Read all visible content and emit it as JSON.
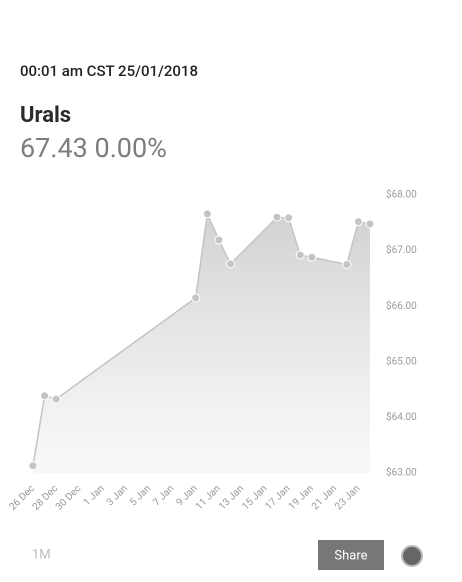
{
  "timestamp": "00:01 am CST 25/01/2018",
  "name": "Urals",
  "quote": "67.43 0.00%",
  "range_button": "1M",
  "share_button": "Share",
  "chart_data": {
    "type": "area",
    "x": [
      "26 Dec",
      "27 Dec",
      "28 Dec",
      "9 Jan",
      "10 Jan",
      "11 Jan",
      "12 Jan",
      "16 Jan",
      "17 Jan",
      "18 Jan",
      "19 Jan",
      "22 Jan",
      "23 Jan",
      "24 Jan"
    ],
    "series": [
      {
        "color": "#c4c4c4",
        "values": [
          63.13,
          64.39,
          64.33,
          66.15,
          67.66,
          67.19,
          66.76,
          67.6,
          67.59,
          66.92,
          66.88,
          66.75,
          67.52,
          67.48
        ]
      }
    ],
    "xlim": [
      "26 Dec",
      "24 Jan"
    ],
    "xticks": [
      "26 Dec",
      "28 Dec",
      "30 Dec",
      "1 Jan",
      "3 Jan",
      "5 Jan",
      "7 Jan",
      "9 Jan",
      "11 Jan",
      "13 Jan",
      "15 Jan",
      "17 Jan",
      "19 Jan",
      "21 Jan",
      "23 Jan"
    ],
    "ylim": [
      63,
      68
    ],
    "yticks": [
      {
        "value": 63,
        "label": "$63.00"
      },
      {
        "value": 64,
        "label": "$64.00"
      },
      {
        "value": 65,
        "label": "$65.00"
      },
      {
        "value": 66,
        "label": "$66.00"
      },
      {
        "value": 67,
        "label": "$67.00"
      },
      {
        "value": 68,
        "label": "$68.00"
      }
    ],
    "yaxis_side": "right",
    "grid": false
  }
}
